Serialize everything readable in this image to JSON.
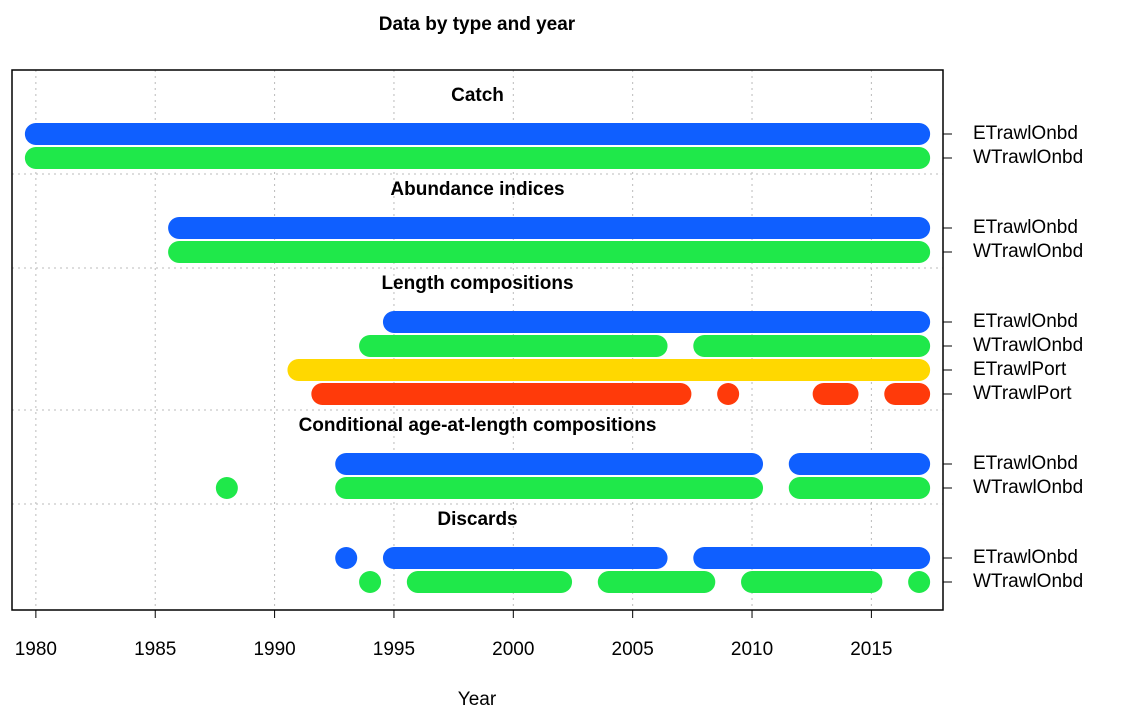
{
  "chart_data": {
    "type": "timeline",
    "title": "Data by type and year",
    "x_label": "Year",
    "xlim": [
      1979,
      2018
    ],
    "xticks": [
      1980,
      1985,
      1990,
      1995,
      2000,
      2005,
      2010,
      2015
    ],
    "grid": true,
    "groups": [
      {
        "title": "Catch",
        "rows": [
          {
            "name": "ETrawlOnbd",
            "color": "#0F5FFF",
            "segments": [
              [
                1980,
                2017
              ]
            ]
          },
          {
            "name": "WTrawlOnbd",
            "color": "#1FE84A",
            "segments": [
              [
                1980,
                2017
              ]
            ]
          }
        ]
      },
      {
        "title": "Abundance indices",
        "rows": [
          {
            "name": "ETrawlOnbd",
            "color": "#0F5FFF",
            "segments": [
              [
                1986,
                2017
              ]
            ]
          },
          {
            "name": "WTrawlOnbd",
            "color": "#1FE84A",
            "segments": [
              [
                1986,
                2017
              ]
            ]
          }
        ]
      },
      {
        "title": "Length compositions",
        "rows": [
          {
            "name": "ETrawlOnbd",
            "color": "#0F5FFF",
            "segments": [
              [
                1995,
                2017
              ]
            ]
          },
          {
            "name": "WTrawlOnbd",
            "color": "#1FE84A",
            "segments": [
              [
                1994,
                2006
              ],
              [
                2008,
                2017
              ]
            ]
          },
          {
            "name": "ETrawlPort",
            "color": "#FFD800",
            "segments": [
              [
                1991,
                2017
              ]
            ]
          },
          {
            "name": "WTrawlPort",
            "color": "#FF3A0A",
            "segments": [
              [
                1992,
                2007
              ],
              [
                2009,
                2009
              ],
              [
                2013,
                2014
              ],
              [
                2016,
                2017
              ]
            ]
          }
        ]
      },
      {
        "title": "Conditional age-at-length compositions",
        "rows": [
          {
            "name": "ETrawlOnbd",
            "color": "#0F5FFF",
            "segments": [
              [
                1993,
                2010
              ],
              [
                2012,
                2017
              ]
            ]
          },
          {
            "name": "WTrawlOnbd",
            "color": "#1FE84A",
            "segments": [
              [
                1988,
                1988
              ],
              [
                1993,
                2010
              ],
              [
                2012,
                2017
              ]
            ]
          }
        ]
      },
      {
        "title": "Discards",
        "rows": [
          {
            "name": "ETrawlOnbd",
            "color": "#0F5FFF",
            "segments": [
              [
                1993,
                1993
              ],
              [
                1995,
                2006
              ],
              [
                2008,
                2017
              ]
            ]
          },
          {
            "name": "WTrawlOnbd",
            "color": "#1FE84A",
            "segments": [
              [
                1994,
                1994
              ],
              [
                1996,
                2002
              ],
              [
                2004,
                2008
              ],
              [
                2010,
                2015
              ],
              [
                2017,
                2017
              ]
            ]
          }
        ]
      }
    ]
  }
}
